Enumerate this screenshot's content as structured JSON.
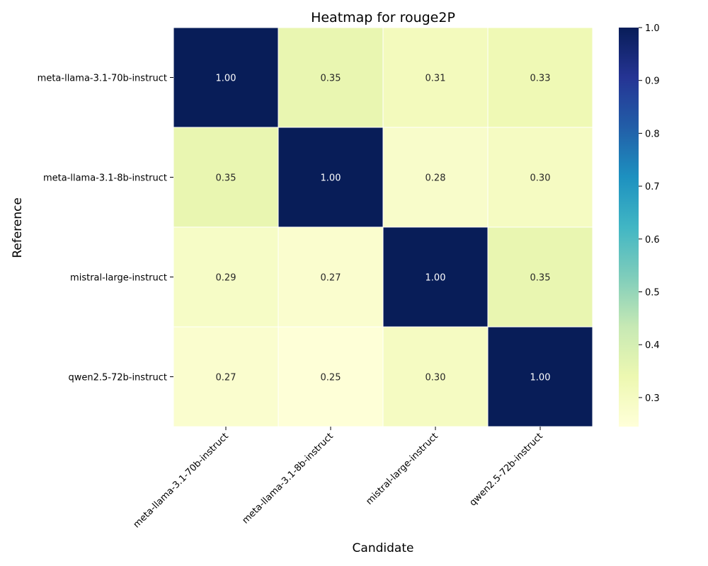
{
  "chart_data": {
    "type": "heatmap",
    "title": "Heatmap for rouge2P",
    "xlabel": "Candidate",
    "ylabel": "Reference",
    "x_categories": [
      "meta-llama-3.1-70b-instruct",
      "meta-llama-3.1-8b-instruct",
      "mistral-large-instruct",
      "qwen2.5-72b-instruct"
    ],
    "y_categories": [
      "meta-llama-3.1-70b-instruct",
      "meta-llama-3.1-8b-instruct",
      "mistral-large-instruct",
      "qwen2.5-72b-instruct"
    ],
    "values": [
      [
        1.0,
        0.35,
        0.31,
        0.33
      ],
      [
        0.35,
        1.0,
        0.28,
        0.3
      ],
      [
        0.29,
        0.27,
        1.0,
        0.35
      ],
      [
        0.27,
        0.25,
        0.3,
        1.0
      ]
    ],
    "value_labels": [
      [
        "1.00",
        "0.35",
        "0.31",
        "0.33"
      ],
      [
        "0.35",
        "1.00",
        "0.28",
        "0.30"
      ],
      [
        "0.29",
        "0.27",
        "1.00",
        "0.35"
      ],
      [
        "0.27",
        "0.25",
        "0.30",
        "1.00"
      ]
    ],
    "colorbar": {
      "range": [
        0.245,
        1.0
      ],
      "ticks": [
        0.3,
        0.4,
        0.5,
        0.6,
        0.7,
        0.8,
        0.9,
        1.0
      ],
      "tick_labels": [
        "0.3",
        "0.4",
        "0.5",
        "0.6",
        "0.7",
        "0.8",
        "0.9",
        "1.0"
      ],
      "colormap": "YlGnBu"
    },
    "grid": false,
    "cell_border_color": "#ffffff"
  }
}
